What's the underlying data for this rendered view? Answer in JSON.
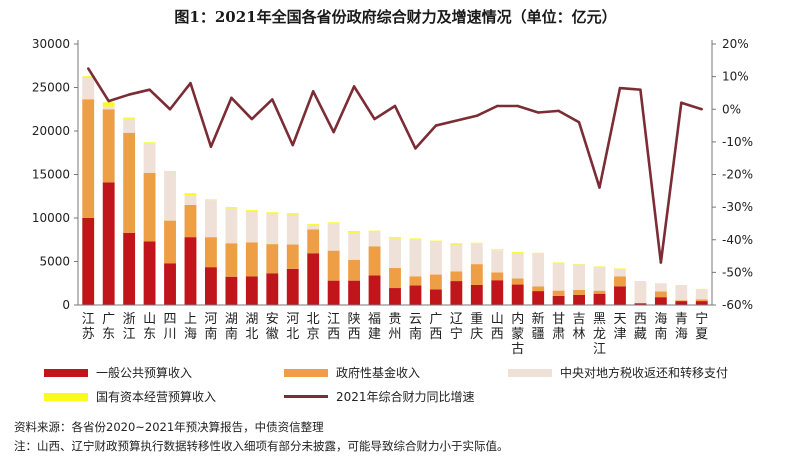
{
  "title": "图1：2021年全国各省份政府综合财力及增速情况（单位：亿元）",
  "colors": {
    "general_budget": "#c0161b",
    "gov_fund": "#ee9f45",
    "central_transfer": "#efe1d8",
    "state_capital": "#fafa1e",
    "growth_line": "#7b2c35",
    "axis": "#777777"
  },
  "legend": {
    "general_budget": "一般公共预算收入",
    "gov_fund": "政府性基金收入",
    "central_transfer": "中央对地方税收返还和转移支付",
    "state_capital": "国有资本经营预算收入",
    "growth": "2021年综合财力同比增速"
  },
  "notes": {
    "source": "资料来源：各省份2020~2021年预决算报告，中债资信整理",
    "note": "注：山西、辽宁财政预算执行数据转移性收入细项有部分未披露，可能导致综合财力小于实际值。"
  },
  "chart_data": {
    "type": "bar",
    "stacked": true,
    "categories": [
      "江苏",
      "广东",
      "浙江",
      "山东",
      "四川",
      "上海",
      "河南",
      "湖南",
      "湖北",
      "安徽",
      "河北",
      "北京",
      "江西",
      "陕西",
      "福建",
      "贵州",
      "云南",
      "广西",
      "辽宁",
      "重庆",
      "山西",
      "内蒙古",
      "新疆",
      "甘肃",
      "吉林",
      "黑龙江",
      "天津",
      "西藏",
      "海南",
      "青海",
      "宁夏"
    ],
    "ylim_left": [
      0,
      30000
    ],
    "yticks_left": [
      "0",
      "5000",
      "10000",
      "15000",
      "20000",
      "25000",
      "30000"
    ],
    "ylim_right": [
      -60,
      20
    ],
    "yticks_right": [
      "20%",
      "10%",
      "0%",
      "-10%",
      "-20%",
      "-30%",
      "-40%",
      "-50%",
      "-60%"
    ],
    "series": [
      {
        "name": "一般公共预算收入",
        "values": [
          10000,
          14100,
          8300,
          7300,
          4800,
          7800,
          4350,
          3250,
          3300,
          3650,
          4150,
          5950,
          2800,
          2800,
          3400,
          1950,
          2250,
          1800,
          2750,
          2300,
          2850,
          2350,
          1600,
          1050,
          1150,
          1300,
          2150,
          200,
          900,
          450,
          450
        ]
      },
      {
        "name": "政府性基金收入",
        "values": [
          13650,
          8400,
          11500,
          7900,
          4900,
          3700,
          3450,
          3850,
          3900,
          3350,
          2800,
          2750,
          3450,
          2400,
          3350,
          2300,
          1050,
          1700,
          1100,
          2400,
          900,
          700,
          550,
          600,
          600,
          350,
          1150,
          50,
          650,
          100,
          200
        ]
      },
      {
        "name": "中央对地方税收返还和转移支付",
        "values": [
          2500,
          300,
          1600,
          3400,
          5600,
          1100,
          4250,
          4000,
          3500,
          3450,
          3450,
          500,
          3150,
          3100,
          1700,
          3400,
          4250,
          3800,
          3100,
          2350,
          2550,
          2950,
          3750,
          3200,
          2900,
          2750,
          750,
          2450,
          900,
          1700,
          1150
        ]
      },
      {
        "name": "国有资本经营预算收入",
        "values": [
          150,
          500,
          150,
          100,
          100,
          250,
          100,
          150,
          200,
          200,
          150,
          100,
          100,
          200,
          100,
          150,
          100,
          100,
          150,
          100,
          100,
          100,
          100,
          50,
          50,
          50,
          150,
          50,
          50,
          50,
          50
        ]
      },
      {
        "name": "2021年综合财力同比增速",
        "axis": "right",
        "values": [
          12.5,
          2.5,
          4.5,
          6,
          0,
          8,
          -11.5,
          3.5,
          -3,
          3,
          -11,
          5.5,
          -7,
          7,
          -3,
          1,
          -12,
          -5,
          -3.5,
          -2,
          1,
          1,
          -1,
          -0.5,
          -4,
          -24,
          6.5,
          6,
          -47,
          2,
          0
        ]
      }
    ]
  }
}
